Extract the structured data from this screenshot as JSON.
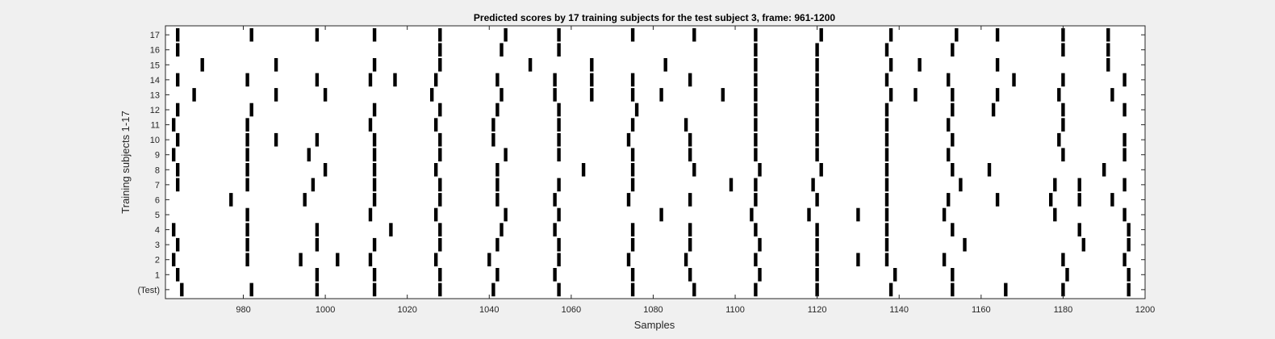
{
  "window": {
    "background": "#f0f0f0"
  },
  "chart_data": {
    "type": "raster",
    "title": "Predicted scores by 17 training subjects for the test subject 3, frame: 961-1200",
    "xlabel": "Samples",
    "ylabel": "Training subjects 1-17",
    "xlim": [
      961,
      1200
    ],
    "xticks": [
      980,
      1000,
      1020,
      1040,
      1060,
      1080,
      1100,
      1120,
      1140,
      1160,
      1180,
      1200
    ],
    "yticklabels": [
      "(Test)",
      "1",
      "2",
      "3",
      "4",
      "5",
      "6",
      "7",
      "8",
      "9",
      "10",
      "11",
      "12",
      "13",
      "14",
      "15",
      "16",
      "17"
    ],
    "grid": false,
    "mark_color": "#000000",
    "rows": [
      {
        "label": "(Test)",
        "x": [
          965,
          982,
          998,
          1012,
          1028,
          1041,
          1057,
          1075,
          1090,
          1105,
          1120,
          1138,
          1153,
          1166,
          1180,
          1196
        ]
      },
      {
        "label": "1",
        "x": [
          964,
          998,
          1012,
          1028,
          1042,
          1056,
          1075,
          1089,
          1106,
          1120,
          1139,
          1153,
          1181,
          1196
        ]
      },
      {
        "label": "2",
        "x": [
          963,
          981,
          994,
          1003,
          1011,
          1027,
          1040,
          1057,
          1074,
          1088,
          1105,
          1120,
          1130,
          1137,
          1151,
          1180,
          1195
        ]
      },
      {
        "label": "3",
        "x": [
          964,
          981,
          998,
          1012,
          1028,
          1042,
          1057,
          1075,
          1089,
          1106,
          1120,
          1137,
          1156,
          1185,
          1196
        ]
      },
      {
        "label": "4",
        "x": [
          963,
          981,
          998,
          1016,
          1028,
          1043,
          1056,
          1075,
          1089,
          1105,
          1120,
          1137,
          1153,
          1184,
          1196
        ]
      },
      {
        "label": "5",
        "x": [
          981,
          1011,
          1027,
          1044,
          1057,
          1082,
          1104,
          1118,
          1130,
          1137,
          1151,
          1178,
          1195
        ]
      },
      {
        "label": "6",
        "x": [
          977,
          995,
          1012,
          1028,
          1042,
          1056,
          1074,
          1089,
          1105,
          1120,
          1137,
          1152,
          1164,
          1177,
          1184,
          1192
        ]
      },
      {
        "label": "7",
        "x": [
          964,
          981,
          997,
          1012,
          1028,
          1042,
          1057,
          1075,
          1099,
          1105,
          1119,
          1137,
          1155,
          1178,
          1184,
          1195
        ]
      },
      {
        "label": "8",
        "x": [
          964,
          981,
          1000,
          1012,
          1027,
          1042,
          1063,
          1075,
          1090,
          1106,
          1121,
          1137,
          1153,
          1162,
          1190
        ]
      },
      {
        "label": "9",
        "x": [
          963,
          981,
          996,
          1012,
          1028,
          1044,
          1057,
          1075,
          1089,
          1105,
          1120,
          1137,
          1152,
          1180,
          1195
        ]
      },
      {
        "label": "10",
        "x": [
          964,
          981,
          988,
          998,
          1012,
          1028,
          1041,
          1057,
          1074,
          1089,
          1105,
          1120,
          1137,
          1153,
          1179,
          1195
        ]
      },
      {
        "label": "11",
        "x": [
          963,
          981,
          1011,
          1027,
          1041,
          1057,
          1075,
          1088,
          1105,
          1120,
          1137,
          1152,
          1180
        ]
      },
      {
        "label": "12",
        "x": [
          964,
          982,
          1012,
          1028,
          1042,
          1057,
          1076,
          1105,
          1120,
          1137,
          1153,
          1163,
          1180,
          1195
        ]
      },
      {
        "label": "13",
        "x": [
          968,
          988,
          1000,
          1026,
          1043,
          1056,
          1065,
          1075,
          1082,
          1097,
          1105,
          1120,
          1138,
          1144,
          1153,
          1164,
          1179,
          1192
        ]
      },
      {
        "label": "14",
        "x": [
          964,
          981,
          998,
          1011,
          1017,
          1027,
          1042,
          1056,
          1065,
          1075,
          1089,
          1105,
          1120,
          1137,
          1152,
          1168,
          1180,
          1195
        ]
      },
      {
        "label": "15",
        "x": [
          970,
          988,
          1012,
          1028,
          1050,
          1065,
          1083,
          1105,
          1120,
          1138,
          1145,
          1164,
          1191
        ]
      },
      {
        "label": "16",
        "x": [
          964,
          1028,
          1043,
          1057,
          1105,
          1120,
          1137,
          1153,
          1180,
          1191
        ]
      },
      {
        "label": "17",
        "x": [
          964,
          982,
          998,
          1012,
          1028,
          1044,
          1057,
          1075,
          1090,
          1105,
          1121,
          1138,
          1154,
          1164,
          1180,
          1191
        ]
      }
    ]
  }
}
